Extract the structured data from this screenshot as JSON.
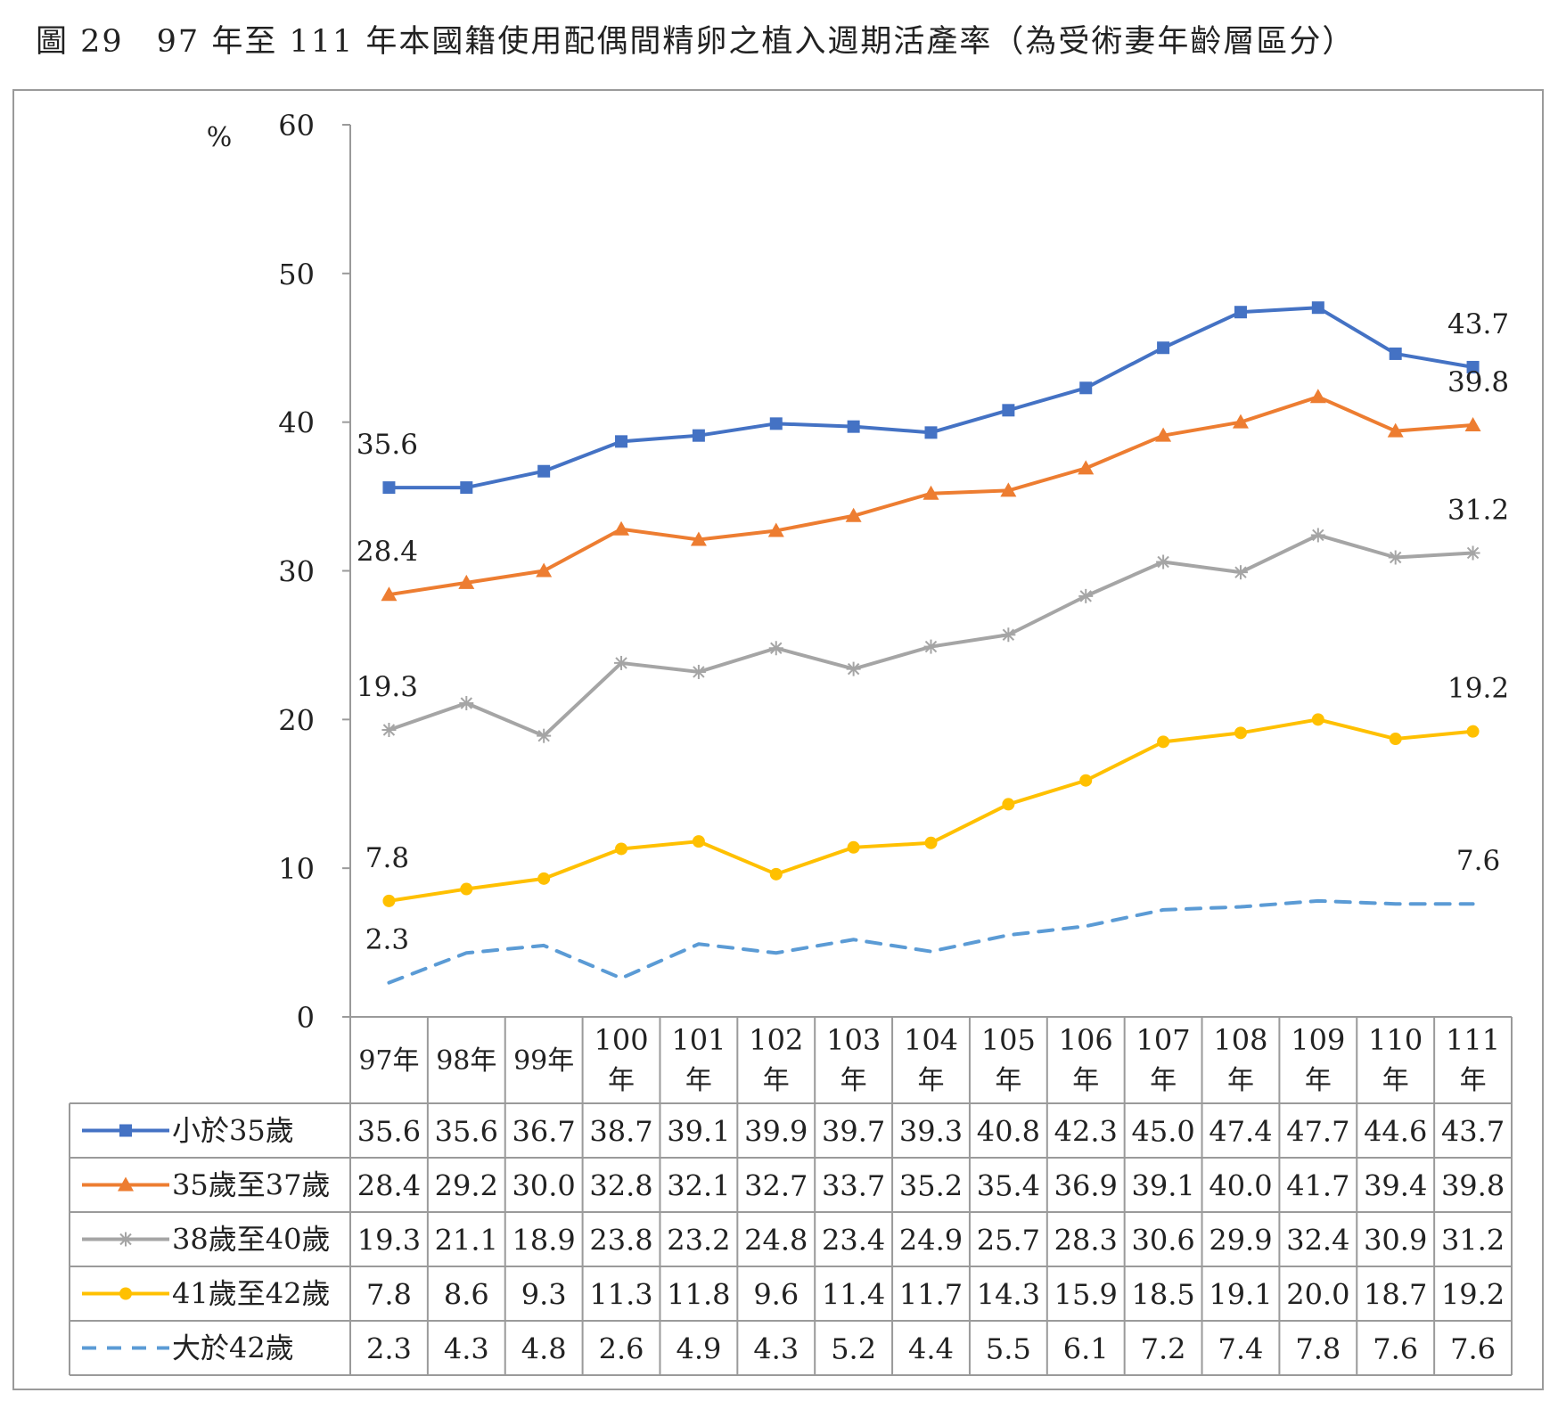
{
  "figure": {
    "title": "圖 29　97 年至 111 年本國籍使用配偶間精卵之植入週期活產率（為受術妻年齡層區分）"
  },
  "chart_data": {
    "type": "line",
    "title": "圖 29　97 年至 111 年本國籍使用配偶間精卵之植入週期活產率（為受術妻年齡層區分）",
    "ylabel": "%",
    "xlabel": "",
    "ylim": [
      0,
      60
    ],
    "yticks": [
      "0",
      "10",
      "20",
      "30",
      "40",
      "50",
      "60"
    ],
    "categories": [
      "97年",
      "98年",
      "99年",
      "100年",
      "101年",
      "102年",
      "103年",
      "104年",
      "105年",
      "106年",
      "107年",
      "108年",
      "109年",
      "110年",
      "111年"
    ],
    "grid": false,
    "legend": "data-table",
    "series": [
      {
        "name": "小於35歲",
        "color": "#4472C4",
        "marker": "square",
        "line_style": "solid",
        "values": [
          35.6,
          35.6,
          36.7,
          38.7,
          39.1,
          39.9,
          39.7,
          39.3,
          40.8,
          42.3,
          45.0,
          47.4,
          47.7,
          44.6,
          43.7
        ],
        "labels": [
          "35.6",
          "35.6",
          "36.7",
          "38.7",
          "39.1",
          "39.9",
          "39.7",
          "39.3",
          "40.8",
          "42.3",
          "45.0",
          "47.4",
          "47.7",
          "44.6",
          "43.7"
        ]
      },
      {
        "name": "35歲至37歲",
        "color": "#ED7D31",
        "marker": "triangle",
        "line_style": "solid",
        "values": [
          28.4,
          29.2,
          30.0,
          32.8,
          32.1,
          32.7,
          33.7,
          35.2,
          35.4,
          36.9,
          39.1,
          40.0,
          41.7,
          39.4,
          39.8
        ],
        "labels": [
          "28.4",
          "29.2",
          "30.0",
          "32.8",
          "32.1",
          "32.7",
          "33.7",
          "35.2",
          "35.4",
          "36.9",
          "39.1",
          "40.0",
          "41.7",
          "39.4",
          "39.8"
        ]
      },
      {
        "name": "38歲至40歲",
        "color": "#A5A5A5",
        "marker": "star",
        "line_style": "solid",
        "values": [
          19.3,
          21.1,
          18.9,
          23.8,
          23.2,
          24.8,
          23.4,
          24.9,
          25.7,
          28.3,
          30.6,
          29.9,
          32.4,
          30.9,
          31.2
        ],
        "labels": [
          "19.3",
          "21.1",
          "18.9",
          "23.8",
          "23.2",
          "24.8",
          "23.4",
          "24.9",
          "25.7",
          "28.3",
          "30.6",
          "29.9",
          "32.4",
          "30.9",
          "31.2"
        ]
      },
      {
        "name": "41歲至42歲",
        "color": "#FFC000",
        "marker": "circle",
        "line_style": "solid",
        "values": [
          7.8,
          8.6,
          9.3,
          11.3,
          11.8,
          9.6,
          11.4,
          11.7,
          14.3,
          15.9,
          18.5,
          19.1,
          20.0,
          18.7,
          19.2
        ],
        "labels": [
          "7.8",
          "8.6",
          "9.3",
          "11.3",
          "11.8",
          "9.6",
          "11.4",
          "11.7",
          "14.3",
          "15.9",
          "18.5",
          "19.1",
          "20.0",
          "18.7",
          "19.2"
        ]
      },
      {
        "name": "大於42歲",
        "color": "#5B9BD5",
        "marker": "none",
        "line_style": "dashed",
        "values": [
          2.3,
          4.3,
          4.8,
          2.6,
          4.9,
          4.3,
          5.2,
          4.4,
          5.5,
          6.1,
          7.2,
          7.4,
          7.8,
          7.6,
          7.6
        ],
        "labels": [
          "2.3",
          "4.3",
          "4.8",
          "2.6",
          "4.9",
          "4.3",
          "5.2",
          "4.4",
          "5.5",
          "6.1",
          "7.2",
          "7.4",
          "7.8",
          "7.6",
          "7.6"
        ]
      }
    ],
    "annotations": [
      {
        "series": 0,
        "index": 0,
        "text": "35.6"
      },
      {
        "series": 0,
        "index": 14,
        "text": "43.7"
      },
      {
        "series": 1,
        "index": 0,
        "text": "28.4"
      },
      {
        "series": 1,
        "index": 14,
        "text": "39.8"
      },
      {
        "series": 2,
        "index": 0,
        "text": "19.3"
      },
      {
        "series": 2,
        "index": 14,
        "text": "31.2"
      },
      {
        "series": 3,
        "index": 0,
        "text": "7.8"
      },
      {
        "series": 3,
        "index": 14,
        "text": "19.2"
      },
      {
        "series": 4,
        "index": 0,
        "text": "2.3"
      },
      {
        "series": 4,
        "index": 14,
        "text": "7.6"
      }
    ]
  }
}
